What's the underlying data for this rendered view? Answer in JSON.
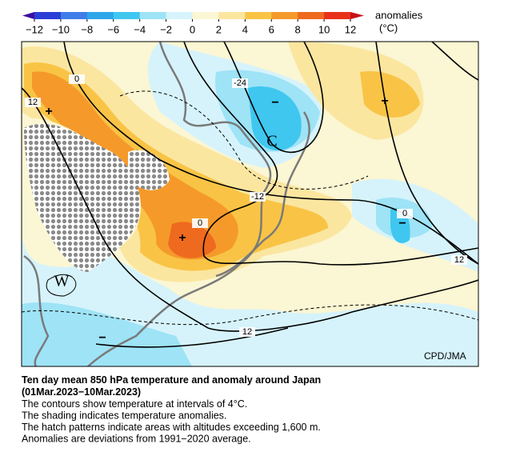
{
  "colorbar": {
    "title": "anomalies",
    "unit": "(°C)",
    "ticks": [
      {
        "value": -12,
        "label": "−12"
      },
      {
        "value": -10,
        "label": "−10"
      },
      {
        "value": -8,
        "label": "−8"
      },
      {
        "value": -6,
        "label": "−6"
      },
      {
        "value": -4,
        "label": "−4"
      },
      {
        "value": -2,
        "label": "−2"
      },
      0,
      2,
      4,
      6,
      8,
      10,
      12
    ],
    "colors": [
      "#2a3fd6",
      "#3f7ee8",
      "#2ea6ea",
      "#3fc7f0",
      "#9ee3f6",
      "#d6f3fb",
      "#fbf6d3",
      "#fbe6a0",
      "#f9c445",
      "#f59a2a",
      "#ee6a1e",
      "#e8321a"
    ],
    "under_color": "#3a0fa0",
    "over_color": "#c8101a"
  },
  "map": {
    "contour_labels": [
      "0",
      "12",
      "-24",
      "-12",
      "0",
      "0",
      "12",
      "12"
    ],
    "markers": [
      "+",
      "+",
      "+",
      "−",
      "−",
      "−",
      "C",
      "W"
    ],
    "credit": "CPD/JMA"
  },
  "caption": {
    "title": [
      "Ten day mean 850 hPa temperature and anomaly around Japan",
      "(01Mar.2023−10Mar.2023)"
    ],
    "lines": [
      "The contours show temperature at intervals of 4°C.",
      "The shading indicates temperature anomalies.",
      "The hatch patterns indicate areas with altitudes exceeding 1,600 m.",
      "Anomalies are deviations from 1991−2020 average."
    ]
  }
}
